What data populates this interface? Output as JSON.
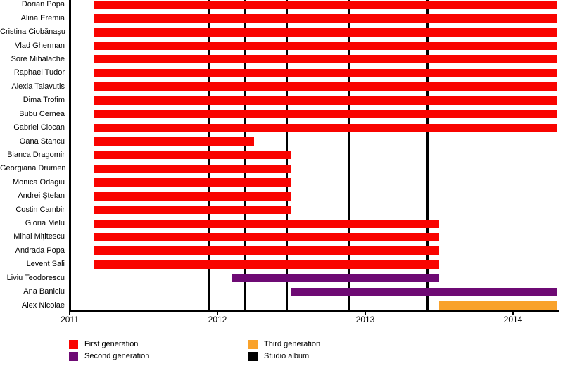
{
  "chart_data": {
    "type": "bar",
    "subtype": "timeline-gantt",
    "x_axis": {
      "tick_values": [
        2011,
        2012,
        2013,
        2014
      ],
      "tick_labels": [
        "2011",
        "2012",
        "2013",
        "2014"
      ],
      "min": 2011,
      "max": 2014.3
    },
    "colors": {
      "first": "#f90400",
      "second": "#6e0a74",
      "third": "#f9a22b",
      "album": "#000000"
    },
    "members": [
      {
        "name": "Dorian Popa",
        "generation": "first",
        "start": 2011.16,
        "end": 2014.3
      },
      {
        "name": "Alina Eremia",
        "generation": "first",
        "start": 2011.16,
        "end": 2014.3
      },
      {
        "name": "Cristina Ciobănașu",
        "generation": "first",
        "start": 2011.16,
        "end": 2014.3
      },
      {
        "name": "Vlad Gherman",
        "generation": "first",
        "start": 2011.16,
        "end": 2014.3
      },
      {
        "name": "Sore Mihalache",
        "generation": "first",
        "start": 2011.16,
        "end": 2014.3
      },
      {
        "name": "Raphael Tudor",
        "generation": "first",
        "start": 2011.16,
        "end": 2014.3
      },
      {
        "name": "Alexia Talavutis",
        "generation": "first",
        "start": 2011.16,
        "end": 2014.3
      },
      {
        "name": "Dima Trofim",
        "generation": "first",
        "start": 2011.16,
        "end": 2014.3
      },
      {
        "name": "Bubu Cernea",
        "generation": "first",
        "start": 2011.16,
        "end": 2014.3
      },
      {
        "name": "Gabriel Ciocan",
        "generation": "first",
        "start": 2011.16,
        "end": 2014.3
      },
      {
        "name": "Oana Stancu",
        "generation": "first",
        "start": 2011.16,
        "end": 2012.25
      },
      {
        "name": "Bianca Dragomir",
        "generation": "first",
        "start": 2011.16,
        "end": 2012.5
      },
      {
        "name": "Georgiana Drumen",
        "generation": "first",
        "start": 2011.16,
        "end": 2012.5
      },
      {
        "name": "Monica Odagiu",
        "generation": "first",
        "start": 2011.16,
        "end": 2012.5
      },
      {
        "name": "Andrei Ștefan",
        "generation": "first",
        "start": 2011.16,
        "end": 2012.5
      },
      {
        "name": "Costin Cambir",
        "generation": "first",
        "start": 2011.16,
        "end": 2012.5
      },
      {
        "name": "Gloria Melu",
        "generation": "first",
        "start": 2011.16,
        "end": 2013.5
      },
      {
        "name": "Mihai Mițitescu",
        "generation": "first",
        "start": 2011.16,
        "end": 2013.5
      },
      {
        "name": "Andrada Popa",
        "generation": "first",
        "start": 2011.16,
        "end": 2013.5
      },
      {
        "name": "Levent Sali",
        "generation": "first",
        "start": 2011.16,
        "end": 2013.5
      },
      {
        "name": "Liviu Teodorescu",
        "generation": "second",
        "start": 2012.1,
        "end": 2013.5
      },
      {
        "name": "Ana Baniciu",
        "generation": "second",
        "start": 2012.5,
        "end": 2014.3
      },
      {
        "name": "Alex Nicolae",
        "generation": "third",
        "start": 2013.5,
        "end": 2014.3
      }
    ],
    "album_lines": [
      2011.94,
      2012.19,
      2012.47,
      2012.89,
      2013.42
    ],
    "legend": [
      {
        "label": "First generation",
        "color": "#f90400"
      },
      {
        "label": "Second generation",
        "color": "#6e0a74"
      },
      {
        "label": "Third generation",
        "color": "#f9a22b"
      },
      {
        "label": "Studio album",
        "color": "#000000"
      }
    ]
  }
}
